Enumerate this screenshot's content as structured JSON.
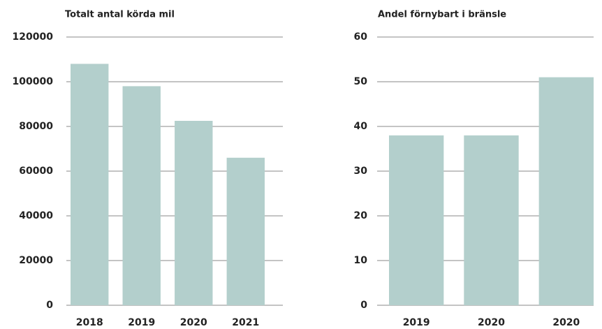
{
  "chart_data": [
    {
      "type": "bar",
      "title": "Totalt antal körda mil",
      "categories": [
        "2018",
        "2019",
        "2020",
        "2021"
      ],
      "values": [
        108000,
        98000,
        82500,
        66000
      ],
      "color": "#b3cfcc",
      "ylim": [
        0,
        120000
      ],
      "yticks": [
        0,
        20000,
        40000,
        60000,
        80000,
        100000,
        120000
      ],
      "grid": true
    },
    {
      "type": "bar",
      "title": "Andel förnybart i bränsle",
      "categories": [
        "2019",
        "2020",
        "2020"
      ],
      "values": [
        38,
        38,
        51
      ],
      "color": "#b3cfcc",
      "ylim": [
        0,
        60
      ],
      "yticks": [
        0,
        10,
        20,
        30,
        40,
        50,
        60
      ],
      "grid": true
    }
  ]
}
